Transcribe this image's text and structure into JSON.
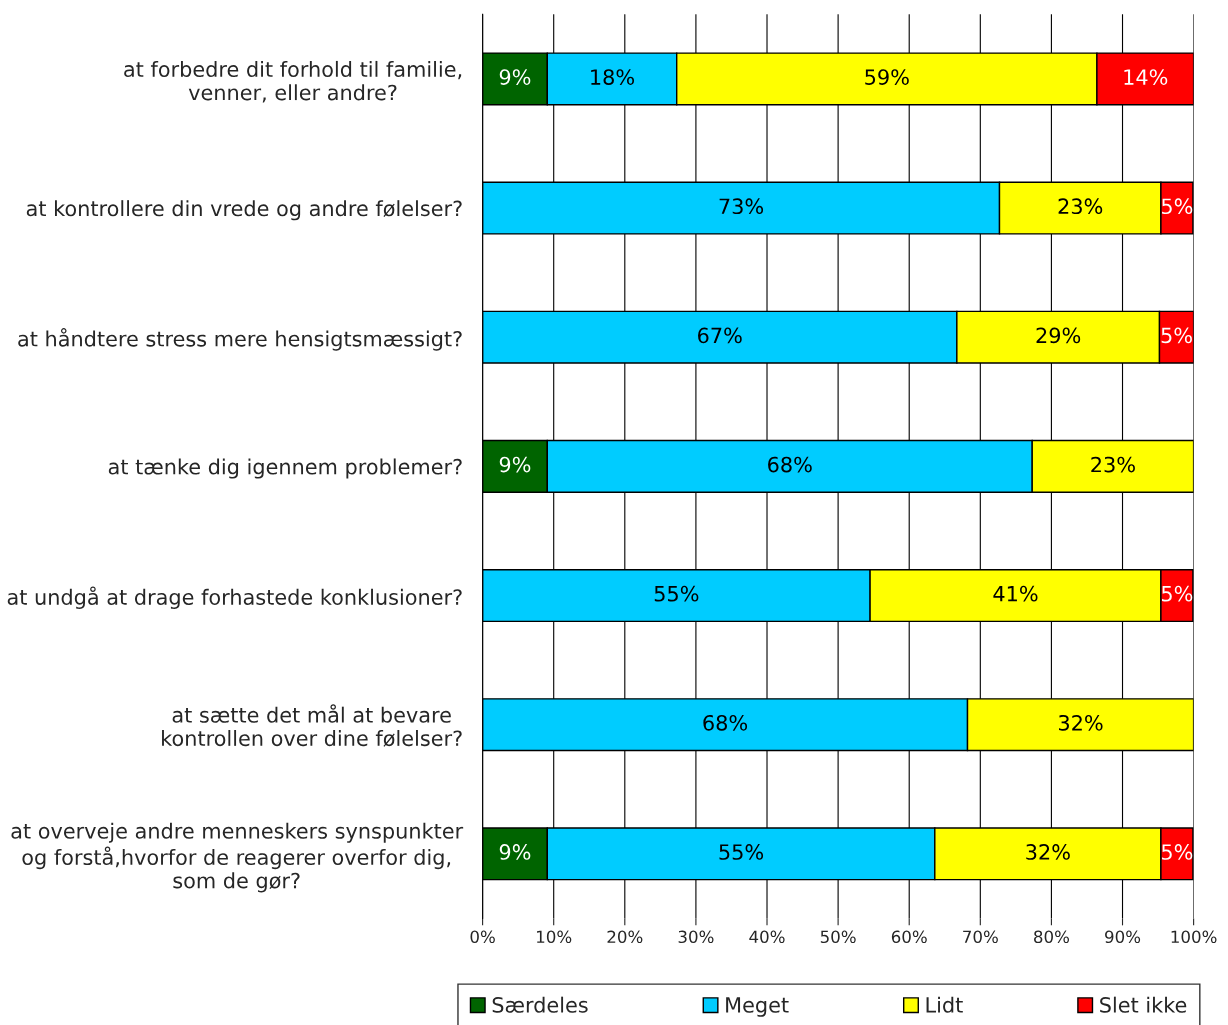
{
  "chart_data": {
    "type": "bar",
    "orientation": "horizontal",
    "stacked": true,
    "categories": [
      "at forbedre dit forhold til familie,\nvenner, eller andre?",
      "at kontrollere din vrede og andre følelser?",
      "at håndtere stress mere hensigtsmæssigt?",
      "at tænke dig igennem problemer?",
      "at undgå at drage forhastede konklusioner?",
      "at sætte det mål at bevare\nkontrollen over dine følelser?",
      "at overveje andre menneskers synspunkter\nog forstå,hvorfor de reagerer overfor dig,\nsom de gør?"
    ],
    "series": [
      {
        "name": "Særdeles",
        "color": "#006400",
        "values": [
          9.1,
          null,
          null,
          9.1,
          null,
          null,
          9.1
        ],
        "value_labels": [
          "9%",
          null,
          null,
          "9%",
          null,
          null,
          "9%"
        ]
      },
      {
        "name": "Meget",
        "color": "#00ccff",
        "values": [
          18.2,
          72.7,
          66.7,
          68.2,
          54.5,
          68.2,
          54.5
        ],
        "value_labels": [
          "18%",
          "73%",
          "67%",
          "68%",
          "55%",
          "68%",
          "55%"
        ]
      },
      {
        "name": "Lidt",
        "color": "#ffff00",
        "values": [
          59.1,
          22.7,
          28.5,
          22.7,
          40.9,
          31.8,
          31.8
        ],
        "value_labels": [
          "59%",
          "23%",
          "29%",
          "23%",
          "41%",
          "32%",
          "32%"
        ]
      },
      {
        "name": "Slet ikke",
        "color": "#ff0000",
        "values": [
          13.6,
          4.5,
          4.8,
          null,
          4.5,
          null,
          4.5
        ],
        "value_labels": [
          "14%",
          "5%",
          "5%",
          null,
          "5%",
          null,
          "5%"
        ]
      }
    ],
    "xlim": [
      0,
      100
    ],
    "xticks": [
      {
        "value": 0,
        "label": "0%"
      },
      {
        "value": 10,
        "label": "10%"
      },
      {
        "value": 20,
        "label": "20%"
      },
      {
        "value": 30,
        "label": "30%"
      },
      {
        "value": 40,
        "label": "40%"
      },
      {
        "value": 50,
        "label": "50%"
      },
      {
        "value": 60,
        "label": "60%"
      },
      {
        "value": 70,
        "label": "70%"
      },
      {
        "value": 80,
        "label": "80%"
      },
      {
        "value": 90,
        "label": "90%"
      },
      {
        "value": 100,
        "label": "100%"
      }
    ],
    "grid": "x",
    "legend": "bottom"
  }
}
